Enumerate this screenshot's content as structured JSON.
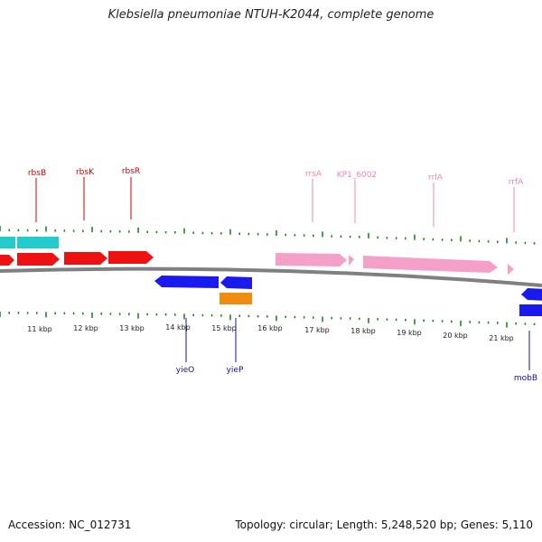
{
  "title": "Klebsiella pneumoniae NTUH-K2044, complete genome",
  "footer": {
    "accession": "Accession: NC_012731",
    "topology": "Topology: circular; Length: 5,248,520 bp; Genes: 5,110"
  },
  "colors": {
    "backbone": "#808080",
    "ticks": "#1a8a1a",
    "red": "#ee1111",
    "cyan": "#22cccc",
    "pink": "#f4a0c8",
    "blue": "#1a1aee",
    "orange": "#f08c10",
    "label_red": "#cc0000",
    "label_pink": "#e888b8",
    "label_blue": "#1010aa"
  },
  "kbp_labels": [
    "11 kbp",
    "12 kbp",
    "13 kbp",
    "14 kbp",
    "15 kbp",
    "16 kbp",
    "17 kbp",
    "18 kbp",
    "19 kbp",
    "20 kbp",
    "21 kbp"
  ],
  "gene_labels": {
    "top": [
      "rbsB",
      "rbsK",
      "rbsR",
      "rrsA",
      "KP1_6002",
      "rrlA",
      "rrfA"
    ],
    "bottom": [
      "yieO",
      "yieP",
      "mobB"
    ]
  }
}
